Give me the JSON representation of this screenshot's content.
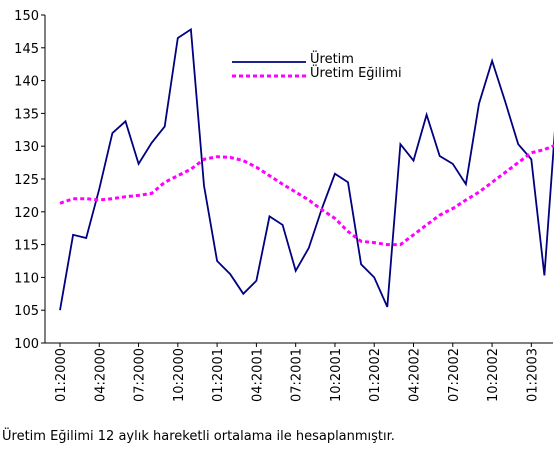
{
  "chart_data": {
    "type": "line",
    "categories": [
      "01:2000",
      null,
      null,
      "04:2000",
      null,
      null,
      "07:2000",
      null,
      null,
      "10:2000",
      null,
      null,
      "01:2001",
      null,
      null,
      "04:2001",
      null,
      null,
      "07:2001",
      null,
      null,
      "10:2001",
      null,
      null,
      "01:2002",
      null,
      null,
      "04:2002",
      null,
      null,
      "07:2002",
      null,
      null,
      "10:2002",
      null,
      null,
      "01:2003",
      null,
      null
    ],
    "series": [
      {
        "name": "Üretim",
        "color": "#000080",
        "dashed": false,
        "values": [
          105,
          116.5,
          116,
          123.5,
          132,
          133.8,
          127.3,
          130.5,
          133,
          146.5,
          147.8,
          124,
          112.5,
          110.5,
          107.5,
          109.5,
          119.3,
          118,
          111,
          114.5,
          120.5,
          125.8,
          124.5,
          112,
          110,
          105.5,
          130.3,
          127.8,
          134.8,
          128.5,
          127.3,
          124.2,
          136.5,
          143,
          136.8,
          130.3,
          128,
          110.3,
          137.8
        ]
      },
      {
        "name": "Üretim Eğilimi",
        "color": "#ff00ff",
        "dashed": true,
        "values": [
          121.3,
          122,
          122,
          121.8,
          122,
          122.3,
          122.5,
          122.8,
          124.5,
          125.5,
          126.5,
          128,
          128.4,
          128.3,
          127.8,
          126.8,
          125.5,
          124.2,
          123,
          121.8,
          120.3,
          119,
          117,
          115.5,
          115.3,
          115,
          115,
          116.5,
          118,
          119.5,
          120.5,
          121.8,
          123,
          124.5,
          126,
          127.5,
          129,
          129.5,
          130.3
        ]
      }
    ],
    "ylim": [
      100,
      150
    ],
    "yticks": [
      100,
      105,
      110,
      115,
      120,
      125,
      130,
      135,
      140,
      145,
      150
    ],
    "footnote": "Üretim Eğilimi 12 aylık hareketli ortalama ile hesaplanmıştır."
  }
}
